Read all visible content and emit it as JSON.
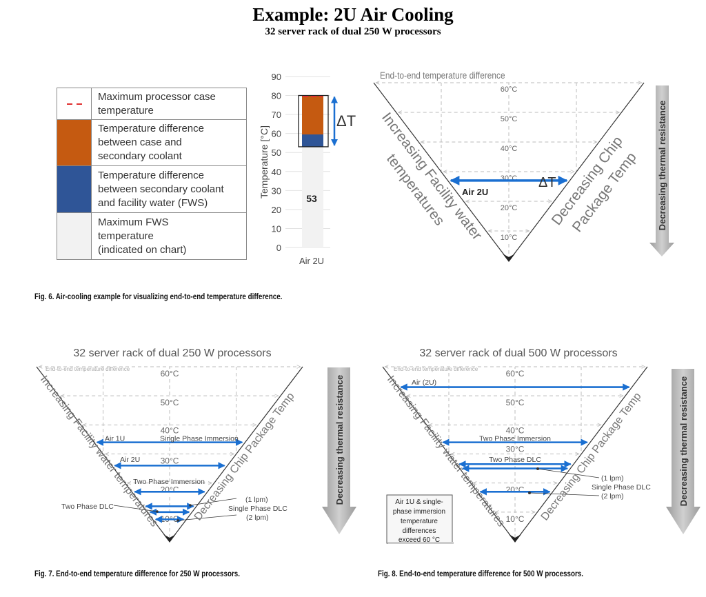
{
  "title": "Example: 2U Air Cooling",
  "subtitle": "32 server rack of dual 250 W processors",
  "legend": {
    "items": [
      {
        "label": "Maximum processor case\ntemperature",
        "swatch": "red-dashed-line",
        "color": "#e03030"
      },
      {
        "label": "Temperature difference\nbetween case and\nsecondary coolant",
        "swatch": "fill",
        "color": "#c55a11"
      },
      {
        "label": "Temperature difference\nbetween secondary coolant\nand facility water (FWS)",
        "swatch": "fill",
        "color": "#2f5597"
      },
      {
        "label": "Maximum FWS\ntemperature\n(indicated on chart)",
        "swatch": "fill",
        "color": "#f2f2f2"
      }
    ]
  },
  "chart_data": {
    "type": "bar",
    "stacked": true,
    "categories": [
      "Air 2U"
    ],
    "ylabel": "Temperature [°C]",
    "ylim": [
      0,
      90
    ],
    "yticks": [
      0,
      10,
      20,
      30,
      40,
      50,
      60,
      70,
      80,
      90
    ],
    "grid": true,
    "segments": [
      {
        "role": "Maximum FWS temperature",
        "from": 0,
        "to": 53,
        "color": "#f2f2f2"
      },
      {
        "role": "Secondary coolant to facility water",
        "from": 53,
        "to": 59.5,
        "color": "#2f5597"
      },
      {
        "role": "Case to secondary coolant",
        "from": 59.5,
        "to": 80,
        "color": "#c55a11"
      }
    ],
    "max_case_temperature": 80,
    "data_label": "53",
    "delta_label": "ΔT"
  },
  "fig6": {
    "caption": "Fig. 6. Air-cooling example for visualizing end-to-end temperature difference.",
    "header": "End-to-end temperature difference",
    "grid_labels": [
      "60°C",
      "50°C",
      "40°C",
      "30°C",
      "20°C",
      "10°C"
    ],
    "left_label": [
      "Increasing Facility water",
      "temperatures"
    ],
    "right_label": [
      "Decreasing Chip",
      "Package Temp"
    ],
    "resistance_label": "Decreasing thermal resistance",
    "delta_label": "ΔT",
    "arrows": [
      {
        "label": "Air 2U",
        "value": 27
      }
    ],
    "arrow_color": "#1a6fd1"
  },
  "fig7": {
    "title": "32 server rack of dual 250 W processors",
    "caption": "Fig. 7. End-to-end temperature difference for 250 W processors.",
    "header": "End-to-end temperature difference",
    "grid_labels": [
      "60°C",
      "50°C",
      "40°C",
      "30°C",
      "20°C",
      "10°C"
    ],
    "left_label": "Increasing Facility water temperatures",
    "right_label": "Decreasing Chip Package Temp",
    "resistance_label": "Decreasing thermal resistance",
    "arrows": [
      {
        "label": "Air 1U",
        "value": 34
      },
      {
        "label": "Single Phase Immersion",
        "value": 34
      },
      {
        "label": "Air 2U",
        "value": 26
      },
      {
        "label": "Two Phase Immersion",
        "value": 17
      },
      {
        "label": "Single Phase DLC (1 lpm)",
        "value": 12
      },
      {
        "label": "Two Phase DLC",
        "value": 10
      },
      {
        "label": "Single Phase DLC (2 lpm)",
        "value": 7.5
      }
    ],
    "annotations": {
      "air1u": "Air 1U",
      "spi": "Single Phase Immersion",
      "air2u": "Air 2U",
      "tpi": "Two Phase Immersion",
      "tpdlc": "Two Phase DLC",
      "lpm1": "(1 lpm)",
      "spdlc": "Single Phase DLC",
      "lpm2": "(2 lpm)"
    }
  },
  "fig8": {
    "title": "32 server rack of dual 500 W processors",
    "caption": "Fig. 8. End-to-end temperature difference for 500 W processors.",
    "header": "End-to-end temperature difference",
    "grid_labels": [
      "60°C",
      "50°C",
      "40°C",
      "30°C",
      "20°C",
      "10°C"
    ],
    "left_label": "Increasing Facility water temperatures",
    "right_label": "Decreasing Chip Package Temp",
    "resistance_label": "Decreasing thermal resistance",
    "arrows": [
      {
        "label": "Air (2U)",
        "value": 53
      },
      {
        "label": "Two Phase Immersion",
        "value": 34
      },
      {
        "label": "Two Phase DLC",
        "value": 26.5
      },
      {
        "label": "Single Phase DLC (1 lpm)",
        "value": 25
      },
      {
        "label": "Single Phase DLC (2 lpm)",
        "value": 17
      }
    ],
    "annotations": {
      "air2u": "Air (2U)",
      "tpi": "Two Phase Immersion",
      "tpdlc": "Two Phase DLC",
      "lpm1": "(1 lpm)",
      "spdlc": "Single Phase DLC",
      "lpm2": "(2 lpm)"
    },
    "note": [
      "Air 1U & single-",
      "phase immersion",
      "temperature",
      "differences",
      "exceed 60 °C"
    ]
  }
}
